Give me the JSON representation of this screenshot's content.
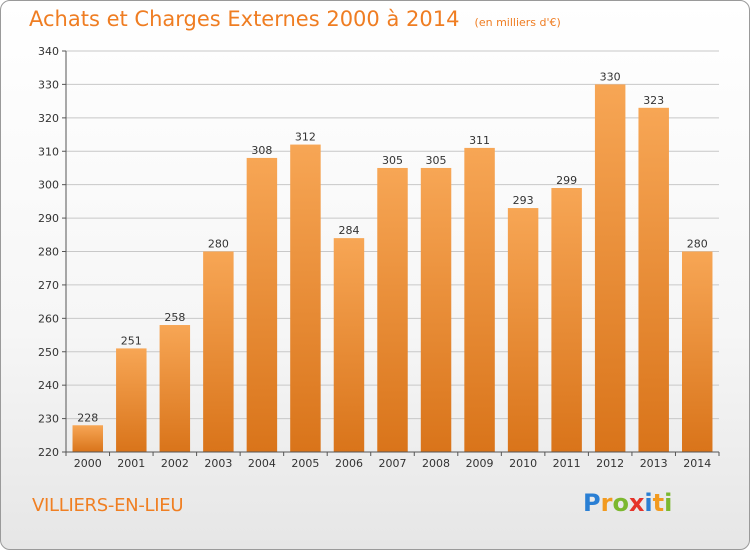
{
  "header": {
    "title": "Achats et Charges Externes 2000 à 2014",
    "subtitle": "(en milliers d'€)"
  },
  "footer": {
    "city": "VILLIERS-EN-LIEU",
    "logo_letters": [
      "P",
      "r",
      "o",
      "x",
      "i",
      "t",
      "i"
    ],
    "logo_colors": [
      "#2a7fd4",
      "#f29a1f",
      "#7cb82f",
      "#e5332a",
      "#2a7fd4",
      "#f29a1f",
      "#7cb82f"
    ]
  },
  "colors": {
    "bar_top": "#f7a655",
    "bar_bottom": "#d9741a",
    "grid": "#c8c8c8",
    "axis": "#555555"
  },
  "chart_data": {
    "type": "bar",
    "categories": [
      "2000",
      "2001",
      "2002",
      "2003",
      "2004",
      "2005",
      "2006",
      "2007",
      "2008",
      "2009",
      "2010",
      "2011",
      "2012",
      "2013",
      "2014"
    ],
    "values": [
      228,
      251,
      258,
      280,
      308,
      312,
      284,
      305,
      305,
      311,
      293,
      299,
      330,
      323,
      280
    ],
    "ylim": [
      220,
      340
    ],
    "yticks": [
      220,
      230,
      240,
      250,
      260,
      270,
      280,
      290,
      300,
      310,
      320,
      330,
      340
    ],
    "grid": true,
    "title": "Achats et Charges Externes 2000 à 2014",
    "xlabel": "",
    "ylabel": ""
  }
}
